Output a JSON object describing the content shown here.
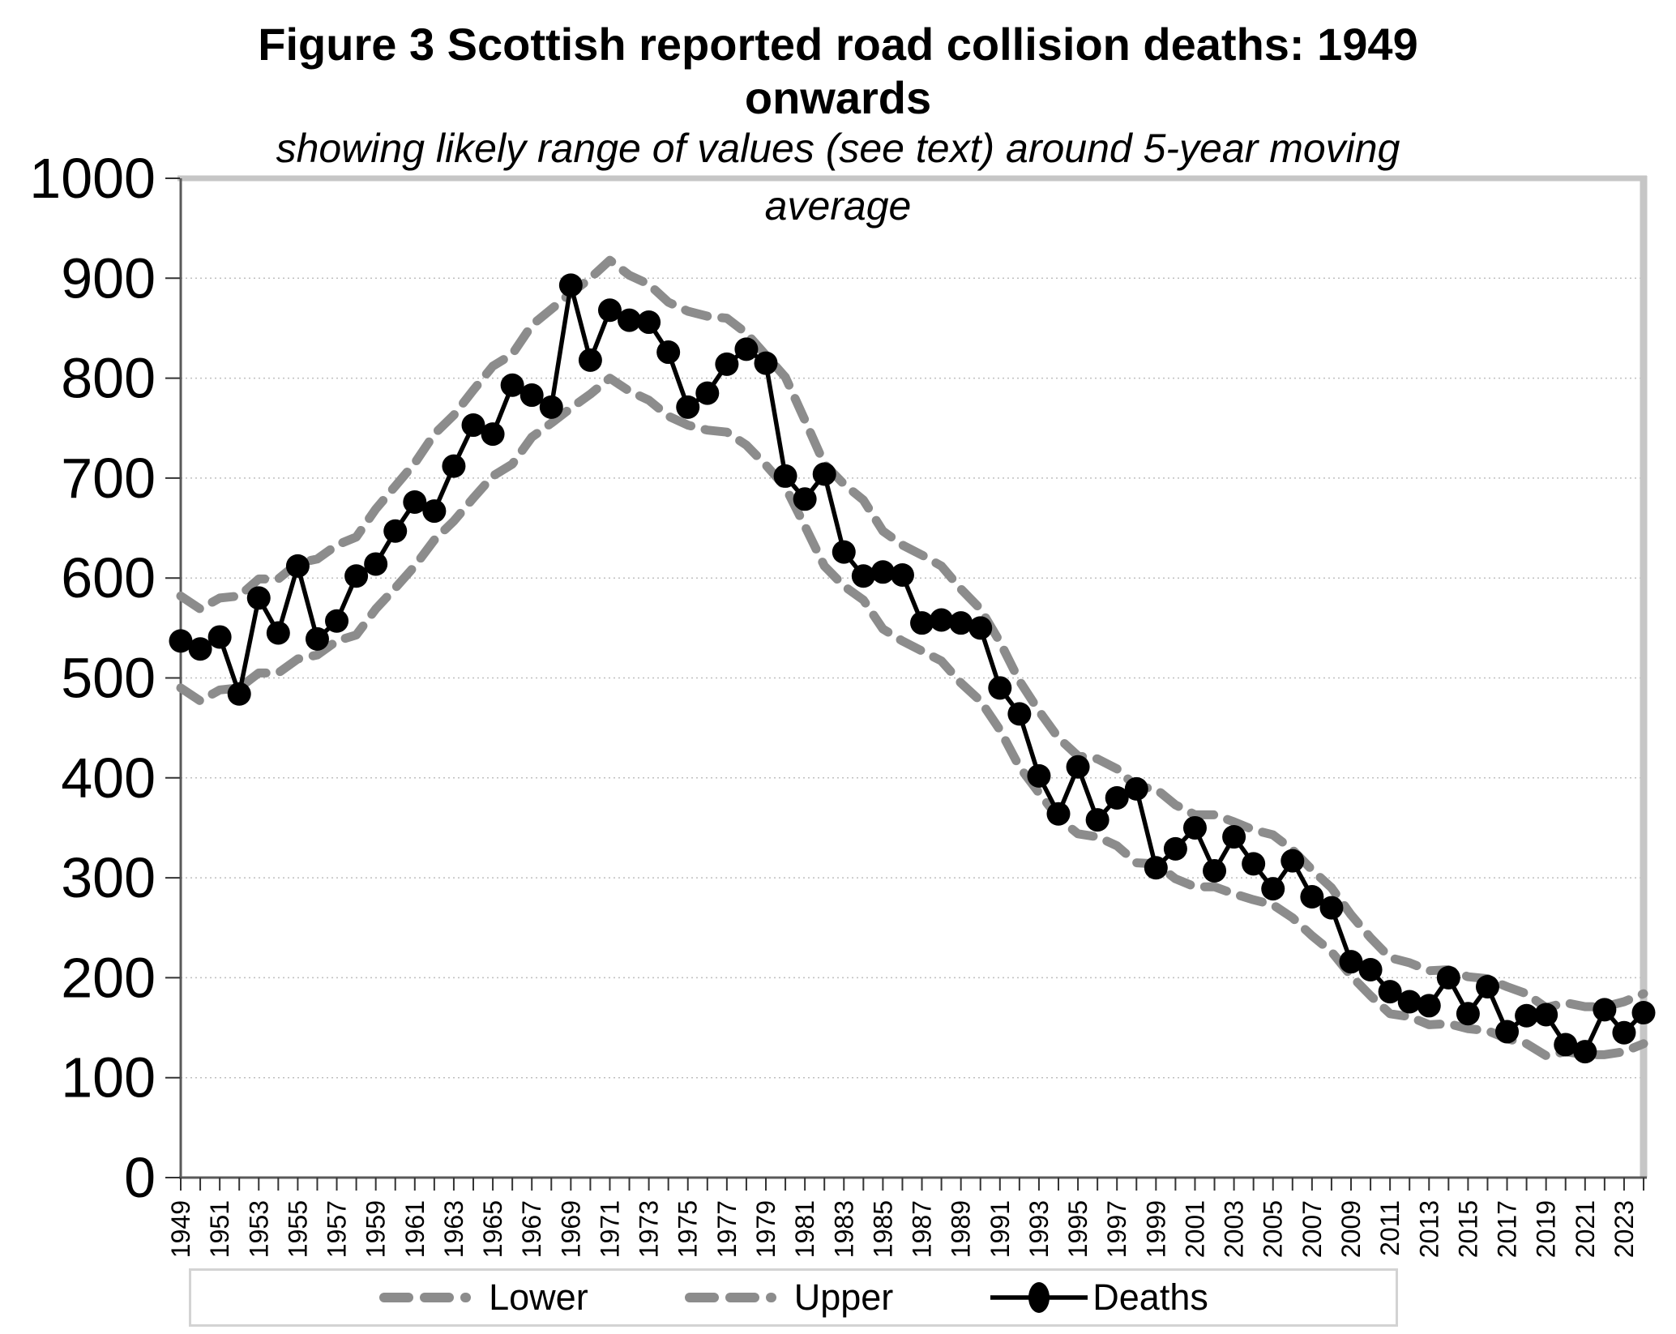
{
  "figure": {
    "title_line1": "Figure 3 Scottish reported road collision deaths: 1949",
    "title_line2": "onwards",
    "subtitle_line1": "showing likely range of values (see text) around 5-year moving",
    "subtitle_line2": "average"
  },
  "colors": {
    "band_gray": "#8c8c8c",
    "deaths_black": "#000000",
    "gridline": "#bfbfbf",
    "plot_border_gray": "#c6c6c6",
    "axis_line": "#595959",
    "tick": "#333333",
    "legend_border": "#d3d3d3"
  },
  "axes": {
    "y": {
      "min": 0,
      "max": 1000,
      "tick_interval": 100,
      "tick_labels": [
        "0",
        "100",
        "200",
        "300",
        "400",
        "500",
        "600",
        "700",
        "800",
        "900",
        "1000"
      ]
    },
    "x": {
      "first_year": 1949,
      "last_year": 2024,
      "label_years": [
        1949,
        1951,
        1953,
        1955,
        1957,
        1959,
        1961,
        1963,
        1965,
        1967,
        1969,
        1971,
        1973,
        1975,
        1977,
        1979,
        1981,
        1983,
        1985,
        1987,
        1989,
        1991,
        1993,
        1995,
        1997,
        1999,
        2001,
        2003,
        2005,
        2007,
        2009,
        2011,
        2013,
        2015,
        2017,
        2019,
        2021,
        2023
      ]
    }
  },
  "legend": {
    "items": [
      {
        "id": "lower",
        "label": "Lower"
      },
      {
        "id": "upper",
        "label": "Upper"
      },
      {
        "id": "deaths",
        "label": "Deaths"
      }
    ]
  },
  "chart_data": {
    "type": "line",
    "title": "Figure 3 Scottish reported road collision deaths: 1949 onwards",
    "subtitle": "showing likely range of values (see text) around 5-year moving average",
    "xlabel": "",
    "ylabel": "",
    "ylim": [
      0,
      1000
    ],
    "grid": "horizontal-dotted",
    "legend_position": "bottom",
    "x": [
      1949,
      1950,
      1951,
      1952,
      1953,
      1954,
      1955,
      1956,
      1957,
      1958,
      1959,
      1960,
      1961,
      1962,
      1963,
      1964,
      1965,
      1966,
      1967,
      1968,
      1969,
      1970,
      1971,
      1972,
      1973,
      1974,
      1975,
      1976,
      1977,
      1978,
      1979,
      1980,
      1981,
      1982,
      1983,
      1984,
      1985,
      1986,
      1987,
      1988,
      1989,
      1990,
      1991,
      1992,
      1993,
      1994,
      1995,
      1996,
      1997,
      1998,
      1999,
      2000,
      2001,
      2002,
      2003,
      2004,
      2005,
      2006,
      2007,
      2008,
      2009,
      2010,
      2011,
      2012,
      2013,
      2014,
      2015,
      2016,
      2017,
      2018,
      2019,
      2020,
      2021,
      2022,
      2023,
      2024
    ],
    "series": [
      {
        "name": "Lower",
        "style": "dashed",
        "color": "#8c8c8c",
        "values": [
          490,
          477,
          488,
          490,
          505,
          505,
          519,
          523,
          537,
          543,
          569,
          590,
          612,
          638,
          657,
          680,
          702,
          714,
          741,
          755,
          770,
          784,
          800,
          787,
          778,
          762,
          753,
          748,
          746,
          733,
          713,
          691,
          652,
          612,
          592,
          578,
          549,
          537,
          527,
          517,
          495,
          477,
          448,
          411,
          385,
          360,
          344,
          341,
          332,
          315,
          314,
          299,
          291,
          291,
          284,
          278,
          273,
          260,
          242,
          226,
          202,
          182,
          164,
          161,
          153,
          154,
          149,
          147,
          139,
          134,
          122,
          126,
          123,
          123,
          126,
          134
        ]
      },
      {
        "name": "Upper",
        "style": "dashed",
        "color": "#8c8c8c",
        "values": [
          582,
          569,
          580,
          582,
          599,
          599,
          615,
          619,
          633,
          641,
          669,
          692,
          715,
          744,
          763,
          788,
          812,
          824,
          853,
          869,
          885,
          900,
          918,
          903,
          894,
          876,
          867,
          862,
          860,
          845,
          823,
          801,
          758,
          714,
          694,
          678,
          647,
          633,
          623,
          612,
          589,
          569,
          536,
          497,
          467,
          440,
          422,
          419,
          409,
          391,
          389,
          373,
          363,
          363,
          356,
          348,
          343,
          328,
          308,
          290,
          263,
          240,
          220,
          215,
          207,
          208,
          201,
          199,
          191,
          184,
          170,
          175,
          171,
          171,
          176,
          184
        ]
      },
      {
        "name": "Deaths",
        "style": "solid-with-markers",
        "color": "#000000",
        "values": [
          537,
          529,
          541,
          484,
          580,
          545,
          612,
          539,
          557,
          602,
          614,
          647,
          676,
          667,
          712,
          753,
          744,
          793,
          783,
          771,
          893,
          818,
          868,
          858,
          856,
          826,
          771,
          785,
          814,
          829,
          815,
          702,
          679,
          704,
          626,
          602,
          606,
          603,
          555,
          558,
          555,
          550,
          490,
          464,
          402,
          364,
          411,
          358,
          380,
          389,
          310,
          329,
          350,
          307,
          341,
          314,
          289,
          317,
          281,
          270,
          216,
          208,
          186,
          176,
          172,
          200,
          164,
          191,
          146,
          162,
          163,
          133,
          126,
          168,
          145,
          165
        ]
      }
    ]
  }
}
